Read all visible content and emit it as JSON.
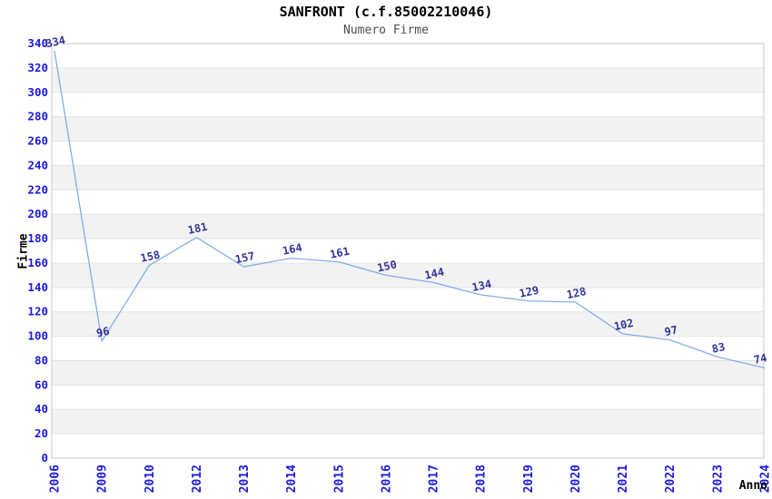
{
  "header": {
    "title": "SANFRONT (c.f.85002210046)",
    "subtitle": "Numero Firme"
  },
  "chart_data": {
    "type": "line",
    "title": "SANFRONT (c.f.85002210046)",
    "subtitle": "Numero Firme",
    "xlabel": "Anno",
    "ylabel": "Firme",
    "x": [
      "2006",
      "2009",
      "2010",
      "2012",
      "2013",
      "2014",
      "2015",
      "2016",
      "2017",
      "2018",
      "2019",
      "2020",
      "2021",
      "2022",
      "2023",
      "2024"
    ],
    "values": [
      334,
      96,
      158,
      181,
      157,
      164,
      161,
      150,
      144,
      134,
      129,
      128,
      102,
      97,
      83,
      74
    ],
    "series": [
      {
        "name": "Numero Firme",
        "values": [
          334,
          96,
          158,
          181,
          157,
          164,
          161,
          150,
          144,
          134,
          129,
          128,
          102,
          97,
          83,
          74
        ]
      }
    ],
    "ylim": [
      0,
      340
    ],
    "ytick_step": 20,
    "grid": "horizontal",
    "bands": "alternating-horizontal",
    "legend": "none",
    "point_labels": true,
    "x_tick_rotation": -90,
    "point_label_rotation": -12,
    "colors": {
      "line": "#82aee5",
      "tick_label": "#1a1ad9",
      "point_label": "#333399",
      "grid_line": "#e3e3e3",
      "band_fill": "#f3f3f3",
      "plot_border": "#c9c9c9",
      "title": "#000000",
      "subtitle": "#4d4d4d",
      "axis_label": "#000000",
      "background": "#ffffff"
    }
  }
}
